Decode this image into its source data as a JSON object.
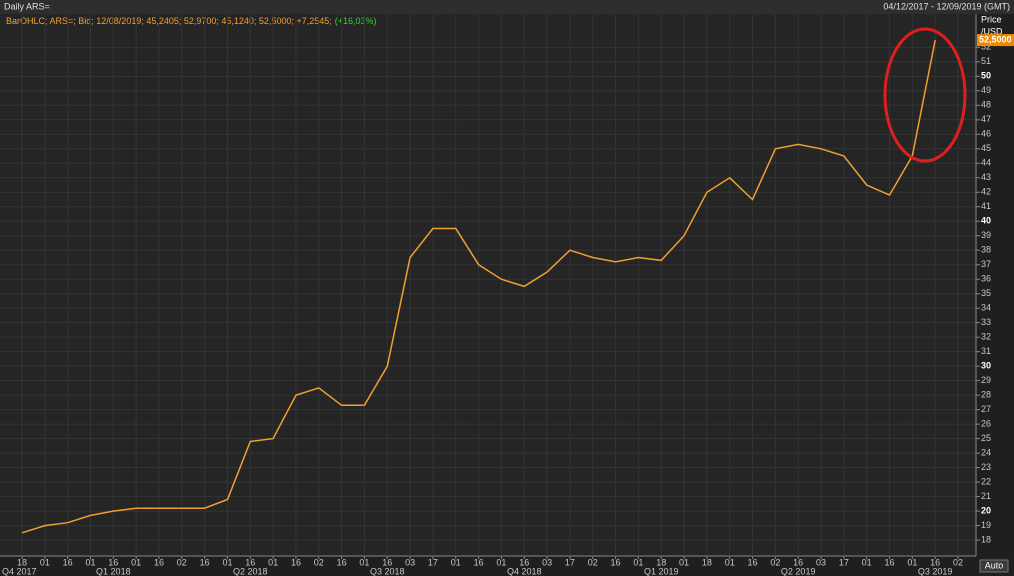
{
  "chart_data": {
    "type": "line",
    "title": "Daily ARS=",
    "date_range": "04/12/2017 - 12/09/2019 (GMT)",
    "y_label": "Price",
    "y_unit": "/USD",
    "auto_button": "Auto",
    "change_label": "(+16,03%)",
    "categories": [
      "18",
      "01",
      "16",
      "01",
      "16",
      "01",
      "16",
      "02",
      "16",
      "01",
      "16",
      "01",
      "16",
      "02",
      "16",
      "01",
      "16",
      "03",
      "17",
      "01",
      "16",
      "01",
      "16",
      "03",
      "17",
      "02",
      "16",
      "01",
      "18",
      "01",
      "18",
      "01",
      "16",
      "02",
      "16",
      "03",
      "17",
      "01",
      "16",
      "01",
      "16",
      "02"
    ],
    "quarters": [
      "Q4 2017",
      "Q1 2018",
      "Q2 2018",
      "Q3 2018",
      "Q4 2018",
      "Q1 2019",
      "Q2 2019",
      "Q3 2019"
    ],
    "series": [
      {
        "name": "BarOHLC; ARS=; Bid; 12/08/2019; 45,2405; 52,9700; 45,1240; 52,5000; +7,2545;",
        "color": "#f0a030",
        "values": [
          18.5,
          19.0,
          19.2,
          19.7,
          20.0,
          20.2,
          20.2,
          20.2,
          20.2,
          20.8,
          24.8,
          25.0,
          28.0,
          28.5,
          27.3,
          27.3,
          30.0,
          37.5,
          39.5,
          39.5,
          37.0,
          36.0,
          35.5,
          36.5,
          38.0,
          37.5,
          37.2,
          37.5,
          37.3,
          39.0,
          42.0,
          43.0,
          41.5,
          45.0,
          45.3,
          45.0,
          44.5,
          42.5,
          41.8,
          44.5,
          52.5,
          null
        ]
      }
    ],
    "last_price": {
      "value": 52.5,
      "label": "52,5000"
    },
    "ylim": [
      16.9,
      54.3
    ],
    "yticks": [
      18,
      19,
      20,
      21,
      22,
      23,
      24,
      25,
      26,
      27,
      28,
      29,
      30,
      31,
      32,
      33,
      34,
      35,
      36,
      37,
      38,
      39,
      40,
      41,
      42,
      43,
      44,
      45,
      46,
      47,
      48,
      49,
      50,
      51,
      52
    ],
    "grid": true
  }
}
